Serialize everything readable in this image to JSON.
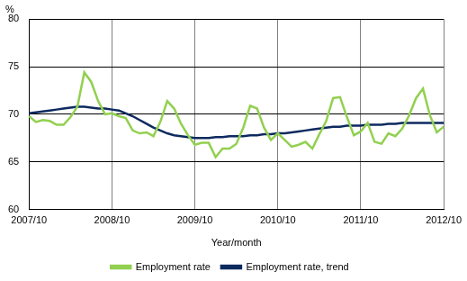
{
  "chart_data": {
    "type": "line",
    "ylabel": "%",
    "xlabel": "Year/month",
    "categories": [
      "2007/10",
      null,
      null,
      null,
      null,
      null,
      null,
      null,
      null,
      null,
      null,
      null,
      "2008/10",
      null,
      null,
      null,
      null,
      null,
      null,
      null,
      null,
      null,
      null,
      null,
      "2009/10",
      null,
      null,
      null,
      null,
      null,
      null,
      null,
      null,
      null,
      null,
      null,
      "2010/10",
      null,
      null,
      null,
      null,
      null,
      null,
      null,
      null,
      null,
      null,
      null,
      "2011/10",
      null,
      null,
      null,
      null,
      null,
      null,
      null,
      null,
      null,
      null,
      null,
      "2012/10"
    ],
    "series": [
      {
        "name": "Employment rate",
        "color": "#92d050",
        "values": [
          69.8,
          69.2,
          69.4,
          69.3,
          68.9,
          68.9,
          69.7,
          70.8,
          74.4,
          73.4,
          71.4,
          70.0,
          70.1,
          69.8,
          69.6,
          68.3,
          68.0,
          68.1,
          67.7,
          69.2,
          71.4,
          70.6,
          69.0,
          67.8,
          66.8,
          67.0,
          67.0,
          65.5,
          66.4,
          66.4,
          66.9,
          68.6,
          70.9,
          70.6,
          68.6,
          67.3,
          68.0,
          67.3,
          66.6,
          66.8,
          67.1,
          66.4,
          67.9,
          69.3,
          71.7,
          71.8,
          69.7,
          67.8,
          68.2,
          69.1,
          67.1,
          66.9,
          68.0,
          67.7,
          68.5,
          69.9,
          71.7,
          72.7,
          69.9,
          68.1,
          68.7
        ]
      },
      {
        "name": "Employment rate, trend",
        "color": "#0d2a5f",
        "values": [
          70.1,
          70.2,
          70.3,
          70.4,
          70.5,
          70.6,
          70.7,
          70.8,
          70.8,
          70.7,
          70.6,
          70.6,
          70.5,
          70.4,
          70.1,
          69.8,
          69.4,
          69.0,
          68.6,
          68.3,
          68.0,
          67.8,
          67.7,
          67.6,
          67.5,
          67.5,
          67.5,
          67.6,
          67.6,
          67.7,
          67.7,
          67.7,
          67.8,
          67.8,
          67.9,
          67.9,
          68.0,
          68.0,
          68.1,
          68.2,
          68.3,
          68.4,
          68.5,
          68.6,
          68.7,
          68.7,
          68.8,
          68.8,
          68.8,
          68.9,
          68.9,
          68.9,
          69.0,
          69.0,
          69.1,
          69.1,
          69.1,
          69.1,
          69.1,
          69.1,
          69.1
        ]
      }
    ],
    "ylim": [
      60,
      80
    ],
    "yticks": [
      60,
      65,
      70,
      75,
      80
    ],
    "grid": true,
    "legend": "bottom"
  }
}
